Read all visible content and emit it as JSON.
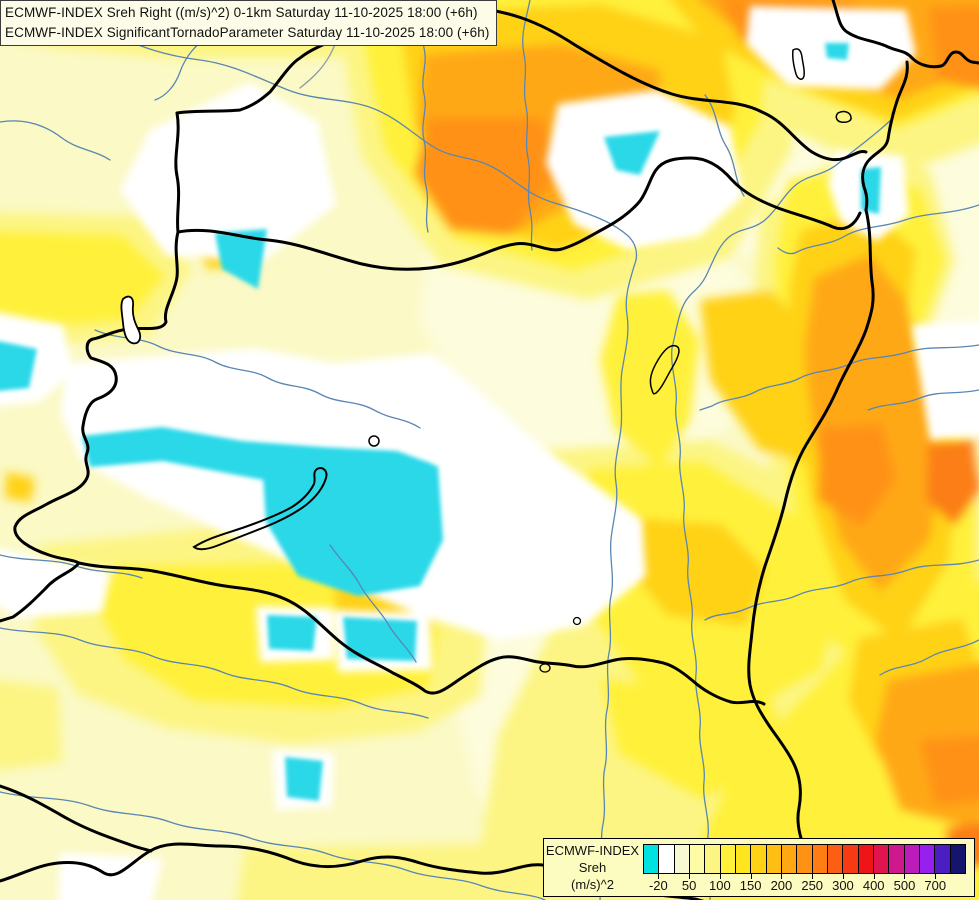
{
  "header": {
    "line1": "ECMWF-INDEX Sreh Right ((m/s)^2) 0-1km Saturday 11-10-2025 18:00 (+6h)",
    "line2": "ECMWF-INDEX SignificantTornadoParameter Saturday 11-10-2025 18:00 (+6h)"
  },
  "legend": {
    "title_line1": "ECMWF-INDEX",
    "title_line2": "Sreh",
    "title_line3": "(m/s)^2",
    "tick_labels": [
      "-20",
      "50",
      "100",
      "150",
      "200",
      "250",
      "300",
      "400",
      "500",
      "700"
    ],
    "cells_per_tick": 2,
    "colors": [
      "#00E2E2",
      "#FFFFFF",
      "#F8F8D2",
      "#FDFBA6",
      "#FCF584",
      "#FFF13B",
      "#FFE51E",
      "#FFD215",
      "#FFBE14",
      "#FFA814",
      "#FF9214",
      "#FF7D14",
      "#FA5F14",
      "#F53A14",
      "#EE1417",
      "#E0144E",
      "#D0188E",
      "#BB1CBB",
      "#9620EE",
      "#4A1EC0",
      "#15156E"
    ]
  },
  "map_colors": {
    "background_cream": "#FBF9C5",
    "lighter_cream": "#FDFCDC",
    "white_band": "#FFFFFF",
    "pale_yellow": "#FCF584",
    "yellow": "#FFF13B",
    "gold": "#FFD215",
    "orange": "#FFA814",
    "deep_orange": "#FF9214",
    "dark_orange_spot": "#FB7E14",
    "cyan_negative": "#2BD8E8",
    "river_blue": "#5A86B4",
    "border_black": "#000000"
  }
}
